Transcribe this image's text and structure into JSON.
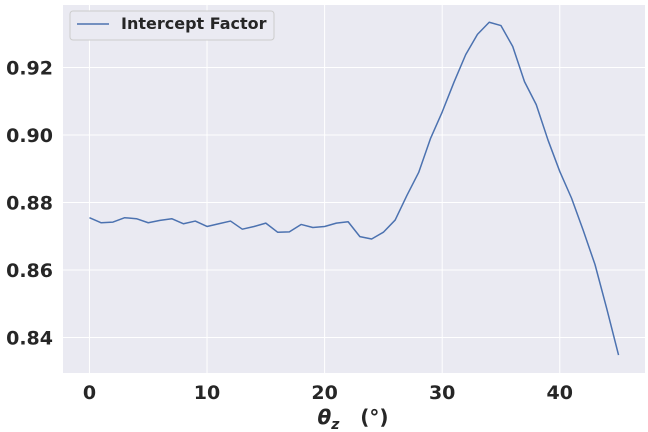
{
  "chart_data": {
    "type": "line",
    "xlabel_symbol": "θ",
    "xlabel_subscript": "z",
    "xlabel_unit": "(°)",
    "ylabel": "",
    "xlim": [
      -2.25,
      47.25
    ],
    "ylim": [
      0.8295,
      0.9385
    ],
    "xticks": [
      0,
      10,
      20,
      30,
      40
    ],
    "yticks": [
      0.84,
      0.86,
      0.88,
      0.9,
      0.92
    ],
    "xtick_labels": [
      "0",
      "10",
      "20",
      "30",
      "40"
    ],
    "ytick_labels": [
      "0.84",
      "0.86",
      "0.88",
      "0.90",
      "0.92"
    ],
    "grid": true,
    "legend_position": "top-left",
    "colors": {
      "background": "#eaeaf2",
      "grid": "#ffffff",
      "line": "#4c72b0",
      "legend_bg": "#eaeaf2",
      "legend_border": "#cccccc"
    },
    "series": [
      {
        "name": "Intercept Factor",
        "x": [
          0,
          1,
          2,
          3,
          4,
          5,
          6,
          7,
          8,
          9,
          10,
          11,
          12,
          13,
          14,
          15,
          16,
          17,
          18,
          19,
          20,
          21,
          22,
          23,
          24,
          25,
          26,
          27,
          28,
          29,
          30,
          31,
          32,
          33,
          34,
          35,
          36,
          37,
          38,
          39,
          40,
          41,
          42,
          43,
          44,
          45
        ],
        "y": [
          0.8755,
          0.874,
          0.8742,
          0.8755,
          0.8752,
          0.874,
          0.8747,
          0.8752,
          0.8737,
          0.8745,
          0.8729,
          0.8737,
          0.8745,
          0.8721,
          0.8729,
          0.8739,
          0.8712,
          0.8713,
          0.8735,
          0.8726,
          0.8729,
          0.8739,
          0.8743,
          0.8699,
          0.8692,
          0.8712,
          0.8748,
          0.8821,
          0.8889,
          0.8989,
          0.9068,
          0.9156,
          0.9238,
          0.9298,
          0.9334,
          0.9324,
          0.9262,
          0.9158,
          0.909,
          0.8985,
          0.8892,
          0.8813,
          0.8717,
          0.8616,
          0.8485,
          0.8348
        ]
      }
    ]
  }
}
